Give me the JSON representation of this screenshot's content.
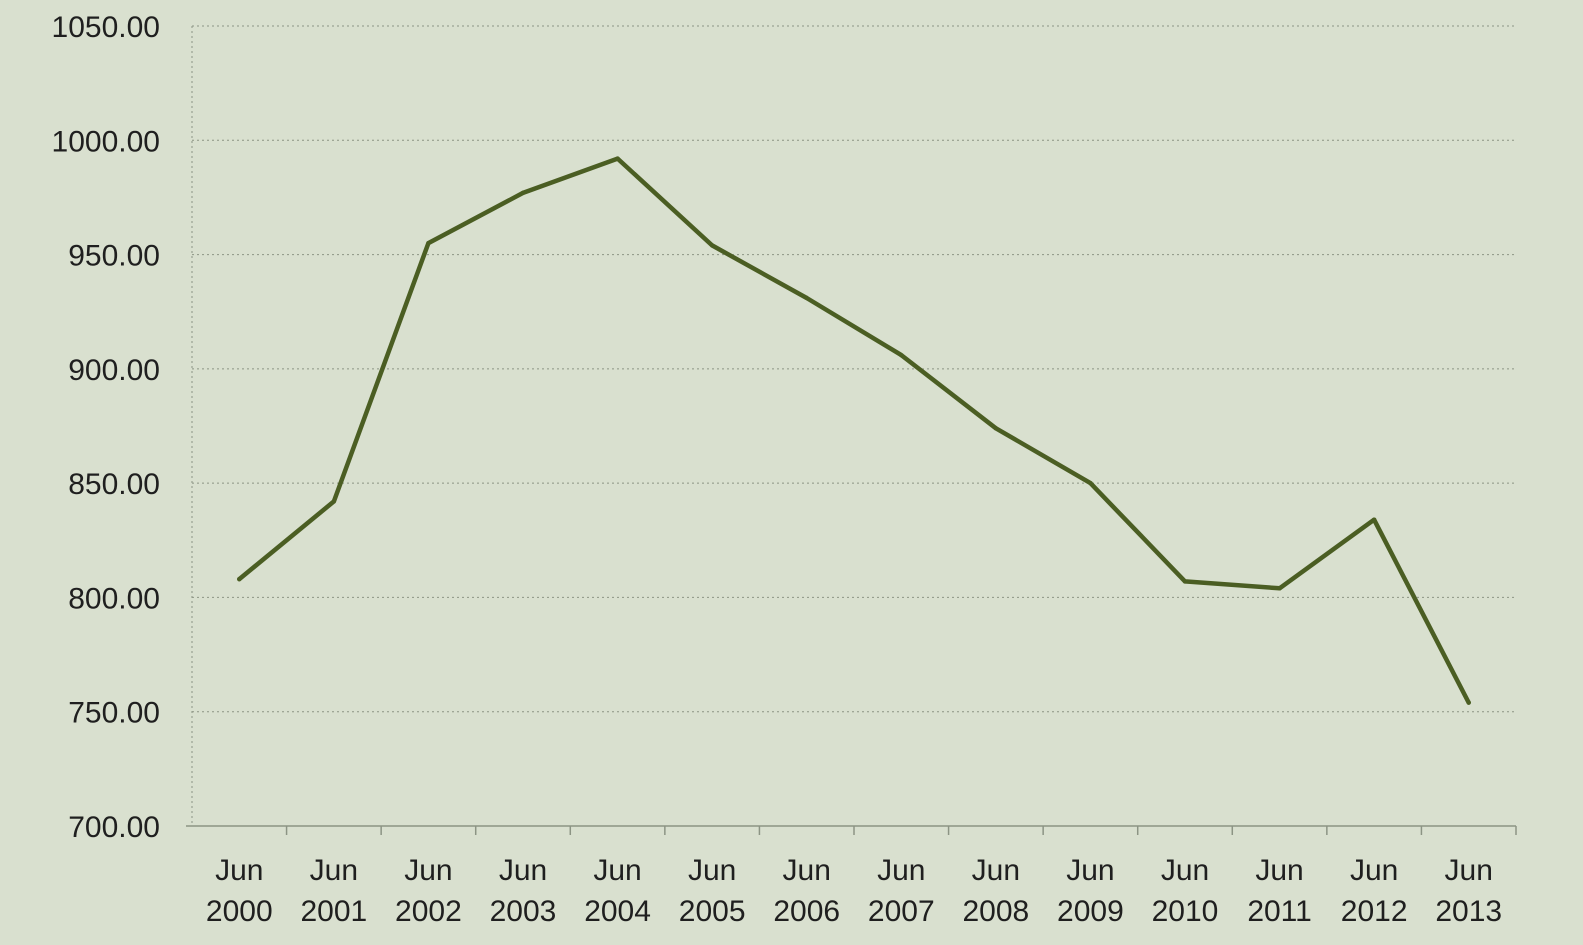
{
  "chart_data": {
    "type": "line",
    "title": "",
    "xlabel": "",
    "ylabel": "",
    "categories": [
      [
        "Jun",
        "2000"
      ],
      [
        "Jun",
        "2001"
      ],
      [
        "Jun",
        "2002"
      ],
      [
        "Jun",
        "2003"
      ],
      [
        "Jun",
        "2004"
      ],
      [
        "Jun",
        "2005"
      ],
      [
        "Jun",
        "2006"
      ],
      [
        "Jun",
        "2007"
      ],
      [
        "Jun",
        "2008"
      ],
      [
        "Jun",
        "2009"
      ],
      [
        "Jun",
        "2010"
      ],
      [
        "Jun",
        "2011"
      ],
      [
        "Jun",
        "2012"
      ],
      [
        "Jun",
        "2013"
      ]
    ],
    "series": [
      {
        "values": [
          808,
          842,
          955,
          977,
          992,
          954,
          931,
          906,
          874,
          850,
          807,
          804,
          834,
          754
        ]
      }
    ],
    "ylim": [
      700,
      1050
    ],
    "yticks": [
      "700.00",
      "750.00",
      "800.00",
      "850.00",
      "900.00",
      "950.00",
      "1000.00",
      "1050.00"
    ],
    "ytick_values": [
      700,
      750,
      800,
      850,
      900,
      950,
      1000,
      1050
    ],
    "grid": true,
    "legend": "none",
    "colors": {
      "background": "#d9e0cf",
      "line": "#4b5e23",
      "grid": "#8c9484",
      "text": "#1f1f1f"
    }
  }
}
